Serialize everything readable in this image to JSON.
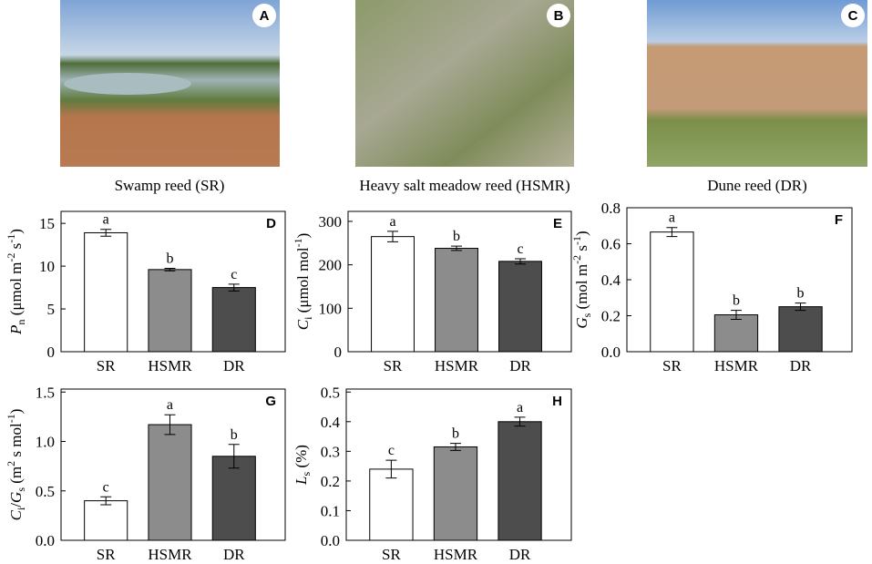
{
  "photos": [
    {
      "label": "A",
      "caption": "Swamp reed (SR)"
    },
    {
      "label": "B",
      "caption": "Heavy salt meadow reed (HSMR)"
    },
    {
      "label": "C",
      "caption": "Dune reed (DR)"
    }
  ],
  "chart_data": [
    {
      "type": "bar",
      "panel": "D",
      "ylabel": [
        {
          "text": "P",
          "italic": true
        },
        {
          "text": "n",
          "sub": true
        },
        {
          "text": " (μmol m"
        },
        {
          "text": "-2",
          "sup": true
        },
        {
          "text": " s"
        },
        {
          "text": "-1",
          "sup": true
        },
        {
          "text": ")"
        }
      ],
      "categories": [
        "SR",
        "HSMR",
        "DR"
      ],
      "colors": [
        "#ffffff",
        "#8c8c8c",
        "#4d4d4d"
      ],
      "values": [
        13.9,
        9.6,
        7.5
      ],
      "errors": [
        0.4,
        0.15,
        0.4
      ],
      "annotations": [
        "a",
        "b",
        "c"
      ],
      "ylim": [
        0,
        16.4
      ],
      "yticks": [
        0,
        5,
        10,
        15
      ]
    },
    {
      "type": "bar",
      "panel": "E",
      "ylabel": [
        {
          "text": "C",
          "italic": true
        },
        {
          "text": "i",
          "sub": true
        },
        {
          "text": " (μmol mol"
        },
        {
          "text": "-1",
          "sup": true
        },
        {
          "text": ")"
        }
      ],
      "categories": [
        "SR",
        "HSMR",
        "DR"
      ],
      "colors": [
        "#ffffff",
        "#8c8c8c",
        "#4d4d4d"
      ],
      "values": [
        265,
        238,
        208
      ],
      "errors": [
        12,
        5,
        6
      ],
      "annotations": [
        "a",
        "b",
        "c"
      ],
      "ylim": [
        0,
        323
      ],
      "yticks": [
        0,
        100,
        200,
        300
      ]
    },
    {
      "type": "bar",
      "panel": "F",
      "ylabel": [
        {
          "text": "G",
          "italic": true
        },
        {
          "text": "s",
          "sub": true
        },
        {
          "text": " (mol m"
        },
        {
          "text": "-2",
          "sup": true
        },
        {
          "text": " s"
        },
        {
          "text": "-1",
          "sup": true
        },
        {
          "text": ")"
        }
      ],
      "categories": [
        "SR",
        "HSMR",
        "DR"
      ],
      "colors": [
        "#ffffff",
        "#8c8c8c",
        "#4d4d4d"
      ],
      "values": [
        0.665,
        0.205,
        0.25
      ],
      "errors": [
        0.025,
        0.025,
        0.02
      ],
      "annotations": [
        "a",
        "b",
        "b"
      ],
      "ylim": [
        0,
        0.8
      ],
      "yticks": [
        {
          "value": 0,
          "label": "0.0"
        },
        0.2,
        0.4,
        0.6,
        0.8
      ]
    },
    {
      "type": "bar",
      "panel": "G",
      "ylabel": [
        {
          "text": "C",
          "italic": true
        },
        {
          "text": "i",
          "sub": true
        },
        {
          "text": "/"
        },
        {
          "text": "G",
          "italic": true
        },
        {
          "text": "s",
          "sub": true
        },
        {
          "text": " (m"
        },
        {
          "text": "2",
          "sup": true
        },
        {
          "text": " s mol"
        },
        {
          "text": "-1",
          "sup": true
        },
        {
          "text": ")"
        }
      ],
      "categories": [
        "SR",
        "HSMR",
        "DR"
      ],
      "colors": [
        "#ffffff",
        "#8c8c8c",
        "#4d4d4d"
      ],
      "values": [
        0.4,
        1.17,
        0.85
      ],
      "errors": [
        0.04,
        0.1,
        0.12
      ],
      "annotations": [
        "c",
        "a",
        "b"
      ],
      "ylim": [
        0,
        1.53
      ],
      "yticks": [
        {
          "value": 0,
          "label": "0.0"
        },
        0.5,
        {
          "value": 1,
          "label": "1.0"
        },
        1.5
      ]
    },
    {
      "type": "bar",
      "panel": "H",
      "ylabel": [
        {
          "text": "L",
          "italic": true
        },
        {
          "text": "s",
          "sub": true
        },
        {
          "text": " (%)"
        }
      ],
      "categories": [
        "SR",
        "HSMR",
        "DR"
      ],
      "colors": [
        "#ffffff",
        "#8c8c8c",
        "#4d4d4d"
      ],
      "values": [
        0.24,
        0.315,
        0.4
      ],
      "errors": [
        0.03,
        0.012,
        0.015
      ],
      "annotations": [
        "c",
        "b",
        "a"
      ],
      "ylim": [
        0,
        0.51
      ],
      "yticks": [
        {
          "value": 0,
          "label": "0.0"
        },
        0.1,
        0.2,
        0.3,
        0.4,
        0.5
      ]
    }
  ]
}
